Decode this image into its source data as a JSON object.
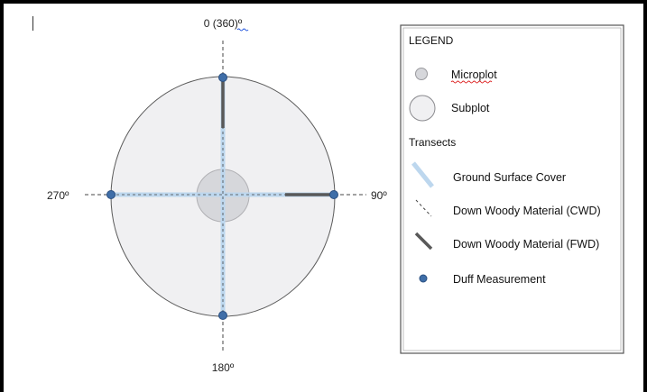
{
  "directions": {
    "north": "0 (360)º",
    "east": "90º",
    "south": "180º",
    "west": "270º"
  },
  "legend": {
    "title": "LEGEND",
    "microplot": "Microplot",
    "subplot": "Subplot",
    "transects": "Transects",
    "ground_surface_cover": "Ground Surface Cover",
    "cwd": "Down Woody Material (CWD)",
    "fwd": "Down Woody Material (FWD)",
    "duff": "Duff Measurement"
  },
  "colors": {
    "subplot_fill": "#f0f0f2",
    "microplot_fill": "#d6d7db",
    "transect_blue": "#bdd7ee",
    "fwd_dark": "#595959",
    "duff_dot": "#3f6ea8",
    "duff_dot_stroke": "#2a4f80"
  }
}
